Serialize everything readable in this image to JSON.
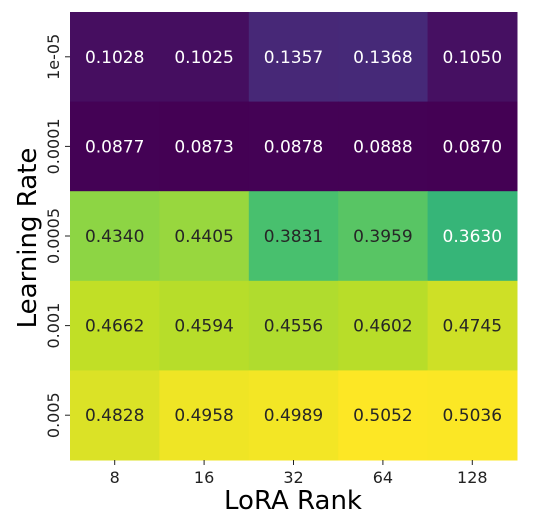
{
  "chart_data": {
    "type": "heatmap",
    "xlabel": "LoRA Rank",
    "ylabel": "Learning Rate",
    "x_categories": [
      "8",
      "16",
      "32",
      "64",
      "128"
    ],
    "y_categories": [
      "1e-05",
      "0.0001",
      "0.0005",
      "0.001",
      "0.005"
    ],
    "values": [
      [
        0.1028,
        0.1025,
        0.1357,
        0.1368,
        0.105
      ],
      [
        0.0877,
        0.0873,
        0.0878,
        0.0888,
        0.087
      ],
      [
        0.434,
        0.4405,
        0.3831,
        0.3959,
        0.363
      ],
      [
        0.4662,
        0.4594,
        0.4556,
        0.4602,
        0.4745
      ],
      [
        0.4828,
        0.4958,
        0.4989,
        0.5052,
        0.5036
      ]
    ],
    "value_labels": [
      [
        "0.1028",
        "0.1025",
        "0.1357",
        "0.1368",
        "0.1050"
      ],
      [
        "0.0877",
        "0.0873",
        "0.0878",
        "0.0888",
        "0.0870"
      ],
      [
        "0.4340",
        "0.4405",
        "0.3831",
        "0.3959",
        "0.3630"
      ],
      [
        "0.4662",
        "0.4594",
        "0.4556",
        "0.4602",
        "0.4745"
      ],
      [
        "0.4828",
        "0.4958",
        "0.4989",
        "0.5052",
        "0.5036"
      ]
    ],
    "colormap": "viridis",
    "value_range": [
      0.087,
      0.5052
    ],
    "grid": false
  }
}
